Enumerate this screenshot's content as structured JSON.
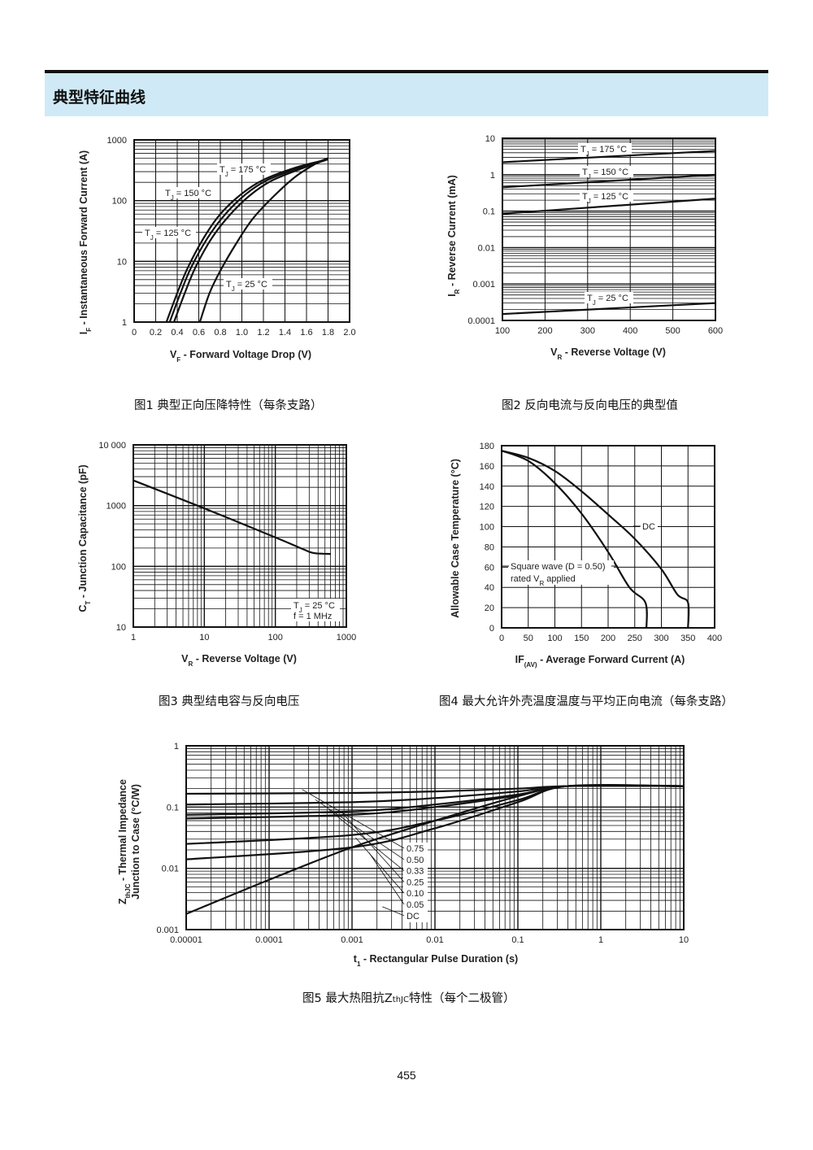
{
  "section": {
    "title": "典型特征曲线"
  },
  "captions": [
    "图1  典型正向压降特性（每条支路）",
    "图2  反向电流与反向电压的典型值",
    "图3  典型结电容与反向电压",
    "图4  最大允许外壳温度温度与平均正向电流（每条支路）",
    "图5  最大热阻抗Z",
    "thJC",
    "特性（每个二极管）"
  ],
  "page_number": "455",
  "chart_data": [
    {
      "type": "line",
      "x_scale": "linear",
      "y_scale": "log",
      "xlim": [
        0,
        2.0
      ],
      "ylim": [
        1,
        1000
      ],
      "xticks": [
        "0",
        "0.2",
        "0.4",
        "0.6",
        "0.8",
        "1.0",
        "1.2",
        "1.4",
        "1.6",
        "1.8",
        "2.0"
      ],
      "yticks": [
        "1",
        "10",
        "100",
        "1000"
      ],
      "ylabel_main": "I",
      "ylabel_sub": "F",
      "ylabel_rest": " - Instantaneous Forward Current (A)",
      "xlabel_main": "V",
      "xlabel_sub": "F",
      "xlabel_rest": " - Forward Voltage Drop (V)",
      "grid": true,
      "series": [
        {
          "name": "T_J = 175 °C",
          "label_a": "T",
          "label_b": "J",
          "label_c": " = 175 °C",
          "x": [
            0.3,
            0.4,
            0.5,
            0.65,
            0.8,
            1.0,
            1.2,
            1.5,
            1.8
          ],
          "y": [
            1,
            3,
            8,
            25,
            60,
            130,
            220,
            350,
            480
          ]
        },
        {
          "name": "T_J = 150 °C",
          "label_a": "T",
          "label_b": "J",
          "label_c": " = 150 °C",
          "x": [
            0.33,
            0.43,
            0.53,
            0.68,
            0.84,
            1.03,
            1.23,
            1.52,
            1.8
          ],
          "y": [
            1,
            3,
            8,
            24,
            58,
            125,
            215,
            340,
            480
          ]
        },
        {
          "name": "T_J = 125 °C",
          "label_a": "T",
          "label_b": "J",
          "label_c": " = 125 °C",
          "x": [
            0.37,
            0.47,
            0.57,
            0.72,
            0.88,
            1.07,
            1.27,
            1.55,
            1.8
          ],
          "y": [
            1,
            3,
            8,
            24,
            56,
            120,
            210,
            335,
            480
          ]
        },
        {
          "name": "T_J = 25 °C",
          "label_a": "T",
          "label_b": "J",
          "label_c": " = 25 °C",
          "x": [
            0.61,
            0.7,
            0.8,
            0.95,
            1.1,
            1.3,
            1.5,
            1.7,
            1.8
          ],
          "y": [
            1,
            3,
            7,
            20,
            50,
            120,
            250,
            420,
            500
          ]
        }
      ]
    },
    {
      "type": "line",
      "x_scale": "linear",
      "y_scale": "log",
      "xlim": [
        100,
        600
      ],
      "ylim": [
        0.0001,
        10
      ],
      "xticks": [
        "100",
        "200",
        "300",
        "400",
        "500",
        "600"
      ],
      "yticks": [
        "0.0001",
        "0.001",
        "0.01",
        "0.1",
        "1",
        "10"
      ],
      "ylabel_main": "I",
      "ylabel_sub": "R",
      "ylabel_rest": " - Reverse Current (mA)",
      "xlabel_main": "V",
      "xlabel_sub": "R",
      "xlabel_rest": " - Reverse Voltage (V)",
      "grid": true,
      "series": [
        {
          "name": "T_J = 175 °C",
          "label_a": "T",
          "label_b": "J",
          "label_c": " = 175 °C",
          "x": [
            100,
            600
          ],
          "y": [
            2.2,
            4.5
          ]
        },
        {
          "name": "T_J = 150 °C",
          "label_a": "T",
          "label_b": "J",
          "label_c": " = 150 °C",
          "x": [
            100,
            600
          ],
          "y": [
            0.45,
            1.0
          ]
        },
        {
          "name": "T_J = 125 °C",
          "label_a": "T",
          "label_b": "J",
          "label_c": " = 125 °C",
          "x": [
            100,
            600
          ],
          "y": [
            0.085,
            0.22
          ]
        },
        {
          "name": "T_J = 25 °C",
          "label_a": "T",
          "label_b": "J",
          "label_c": " = 25 °C",
          "x": [
            100,
            600
          ],
          "y": [
            0.00015,
            0.0003
          ]
        }
      ]
    },
    {
      "type": "line",
      "x_scale": "log",
      "y_scale": "log",
      "xlim": [
        1,
        1000
      ],
      "ylim": [
        10,
        10000
      ],
      "xticks": [
        "1",
        "10",
        "100",
        "1000"
      ],
      "yticks": [
        "10",
        "100",
        "1000",
        "10 000"
      ],
      "ylabel_main": "C",
      "ylabel_sub": "T",
      "ylabel_rest": " - Junction Capacitance (pF)",
      "xlabel_main": "V",
      "xlabel_sub": "R",
      "xlabel_rest": " - Reverse Voltage (V)",
      "annotation": {
        "l1a": "T",
        "l1b": "J",
        "l1c": " = 25 °C",
        "l2": "f = 1 MHz"
      },
      "grid": true,
      "series": [
        {
          "name": "",
          "x": [
            1,
            10,
            100,
            250,
            350,
            600
          ],
          "y": [
            2600,
            900,
            300,
            190,
            165,
            160
          ]
        }
      ]
    },
    {
      "type": "line",
      "x_scale": "linear",
      "y_scale": "linear",
      "xlim": [
        0,
        400
      ],
      "ylim": [
        0,
        180
      ],
      "xticks": [
        "0",
        "50",
        "100",
        "150",
        "200",
        "250",
        "300",
        "350",
        "400"
      ],
      "yticks": [
        "0",
        "20",
        "40",
        "60",
        "80",
        "100",
        "120",
        "140",
        "160",
        "180"
      ],
      "ylabel": "Allowable Case Temperature (°C)",
      "xlabel_main": "IF",
      "xlabel_sub": "(AV)",
      "xlabel_rest": " - Average Forward Current (A)",
      "grid": true,
      "series": [
        {
          "name": "DC",
          "label": "DC",
          "x": [
            0,
            50,
            100,
            150,
            200,
            250,
            300,
            330,
            350,
            350
          ],
          "y": [
            175,
            168,
            155,
            135,
            112,
            88,
            58,
            33,
            25,
            0
          ]
        },
        {
          "name": "Square wave (D = 0.50) rated V_R applied",
          "label1": "Square wave (D = 0.50)",
          "label2a": "rated V",
          "label2b": "R",
          "label2c": " applied",
          "x": [
            0,
            50,
            100,
            150,
            200,
            240,
            270,
            272
          ],
          "y": [
            175,
            165,
            143,
            113,
            75,
            40,
            25,
            0
          ]
        }
      ]
    },
    {
      "type": "line",
      "x_scale": "log",
      "y_scale": "log",
      "xlim": [
        1e-05,
        10
      ],
      "ylim": [
        0.001,
        1
      ],
      "xticks": [
        "0.00001",
        "0.0001",
        "0.001",
        "0.01",
        "0.1",
        "1",
        "10"
      ],
      "yticks": [
        "0.001",
        "0.01",
        "0.1",
        "1"
      ],
      "ylabel_line1_main": "Z",
      "ylabel_line1_sub": "thJC",
      "ylabel_line1_rest": " - Thermal Impedance",
      "ylabel_line2": "Junction to Case (°C/W)",
      "xlabel_main": "t",
      "xlabel_sub": "1",
      "xlabel_rest": " - Rectangular Pulse Duration (s)",
      "grid": true,
      "series": [
        {
          "name": "0.75",
          "x": [
            1e-05,
            0.001,
            0.01,
            0.1,
            0.4,
            10
          ],
          "y": [
            0.165,
            0.17,
            0.18,
            0.2,
            0.22,
            0.22
          ]
        },
        {
          "name": "0.50",
          "x": [
            1e-05,
            0.001,
            0.01,
            0.1,
            0.4,
            10
          ],
          "y": [
            0.11,
            0.12,
            0.14,
            0.18,
            0.22,
            0.22
          ]
        },
        {
          "name": "0.33",
          "x": [
            1e-05,
            0.001,
            0.01,
            0.1,
            0.4,
            10
          ],
          "y": [
            0.075,
            0.085,
            0.11,
            0.16,
            0.22,
            0.22
          ]
        },
        {
          "name": "0.25",
          "x": [
            1e-05,
            0.001,
            0.01,
            0.1,
            0.4,
            10
          ],
          "y": [
            0.065,
            0.075,
            0.1,
            0.155,
            0.22,
            0.22
          ]
        },
        {
          "name": "0.10",
          "x": [
            1e-05,
            0.001,
            0.01,
            0.1,
            0.4,
            10
          ],
          "y": [
            0.025,
            0.035,
            0.06,
            0.13,
            0.22,
            0.22
          ]
        },
        {
          "name": "0.05",
          "x": [
            1e-05,
            0.001,
            0.01,
            0.1,
            0.4,
            10
          ],
          "y": [
            0.014,
            0.022,
            0.045,
            0.12,
            0.22,
            0.22
          ]
        },
        {
          "name": "DC",
          "x": [
            1e-05,
            0.0001,
            0.001,
            0.01,
            0.1,
            0.4,
            10
          ],
          "y": [
            0.0018,
            0.0065,
            0.022,
            0.06,
            0.15,
            0.22,
            0.22
          ]
        }
      ]
    }
  ]
}
